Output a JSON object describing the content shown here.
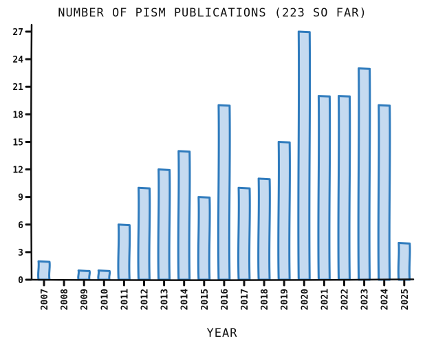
{
  "chart_data": {
    "type": "bar",
    "title": "NUMBER OF PISM PUBLICATIONS (223 SO FAR)",
    "xlabel": "YEAR",
    "ylabel": "",
    "categories": [
      "2007",
      "2008",
      "2009",
      "2010",
      "2011",
      "2012",
      "2013",
      "2014",
      "2015",
      "2016",
      "2017",
      "2018",
      "2019",
      "2020",
      "2021",
      "2022",
      "2023",
      "2024",
      "2025"
    ],
    "values": [
      2,
      0,
      1,
      1,
      6,
      10,
      12,
      14,
      9,
      19,
      10,
      11,
      15,
      27,
      20,
      20,
      23,
      19,
      4
    ],
    "yticks": [
      "0",
      "3",
      "6",
      "9",
      "12",
      "15",
      "18",
      "21",
      "24",
      "27"
    ],
    "ylim": [
      0,
      27
    ],
    "grid": false,
    "legend": "none",
    "bar_fill": "#c5daf0",
    "bar_stroke": "#2f7bbd"
  }
}
